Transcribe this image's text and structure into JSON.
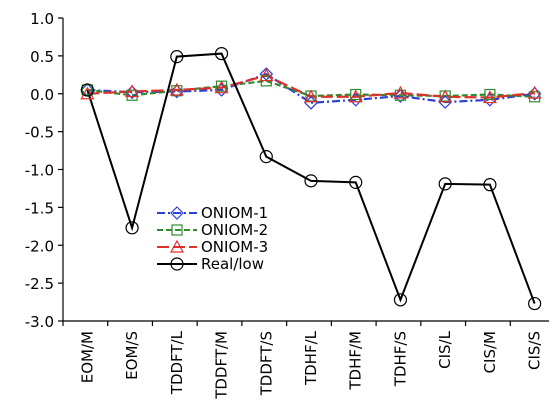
{
  "chart_data": {
    "type": "line",
    "categories": [
      "EOM/M",
      "EOM/S",
      "TDDFT/L",
      "TDDFT/M",
      "TDDFT/S",
      "TDHF/L",
      "TDHF/M",
      "TDHF/S",
      "CIS/L",
      "CIS/M",
      "CIS/S"
    ],
    "series": [
      {
        "name": "ONIOM-1",
        "color": "#2b3fd6",
        "marker": "diamond",
        "dash": "dashdot",
        "values": [
          0.05,
          0.02,
          0.03,
          0.05,
          0.26,
          -0.12,
          -0.08,
          -0.03,
          -0.11,
          -0.08,
          0.0
        ]
      },
      {
        "name": "ONIOM-2",
        "color": "#2e8b2e",
        "marker": "square",
        "dash": "dashed",
        "values": [
          0.05,
          -0.02,
          0.04,
          0.1,
          0.17,
          -0.03,
          -0.01,
          -0.02,
          -0.03,
          -0.01,
          -0.04
        ]
      },
      {
        "name": "ONIOM-3",
        "color": "#e0302a",
        "marker": "triangle",
        "dash": "longdash",
        "values": [
          0.0,
          0.03,
          0.05,
          0.08,
          0.24,
          -0.04,
          -0.04,
          0.01,
          -0.04,
          -0.05,
          0.01
        ]
      },
      {
        "name": "Real/low",
        "color": "#000000",
        "marker": "circle",
        "dash": "solid",
        "values": [
          0.05,
          -1.77,
          0.49,
          0.53,
          -0.83,
          -1.15,
          -1.17,
          -2.72,
          -1.19,
          -1.2,
          -2.77
        ]
      }
    ],
    "ylim": [
      -3.0,
      1.0
    ],
    "yticks": [
      {
        "value": 1.0,
        "label": "1.0"
      },
      {
        "value": 0.5,
        "label": "0.5"
      },
      {
        "value": 0.0,
        "label": "0.0"
      },
      {
        "value": -0.5,
        "label": "-0.5"
      },
      {
        "value": -1.0,
        "label": "-1.0"
      },
      {
        "value": -1.5,
        "label": "-1.5"
      },
      {
        "value": -2.0,
        "label": "-2.0"
      },
      {
        "value": -2.5,
        "label": "-2.5"
      },
      {
        "value": -3.0,
        "label": "-3.0"
      }
    ],
    "grid": false
  }
}
